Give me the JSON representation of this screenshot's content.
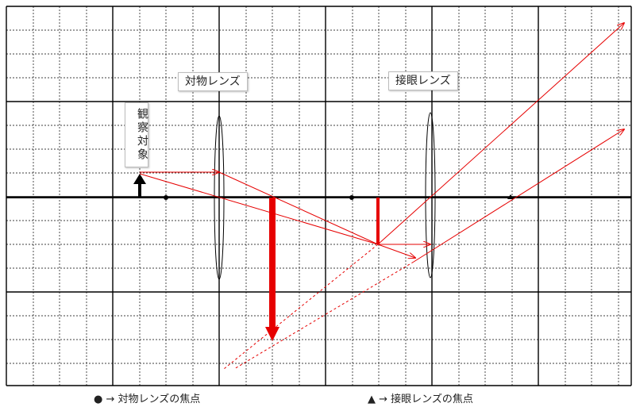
{
  "labels": {
    "objective_lens": "対物レンズ",
    "eyepiece_lens": "接眼レンズ",
    "object": "観察対象"
  },
  "legend": {
    "objective_focus": "● → 対物レンズの焦点",
    "eyepiece_focus": "▲ → 接眼レンズの焦点"
  },
  "colors": {
    "ray": "#e60000",
    "grid_major": "#000000",
    "grid_minor": "#000000",
    "object_arrow": "#000000"
  }
}
